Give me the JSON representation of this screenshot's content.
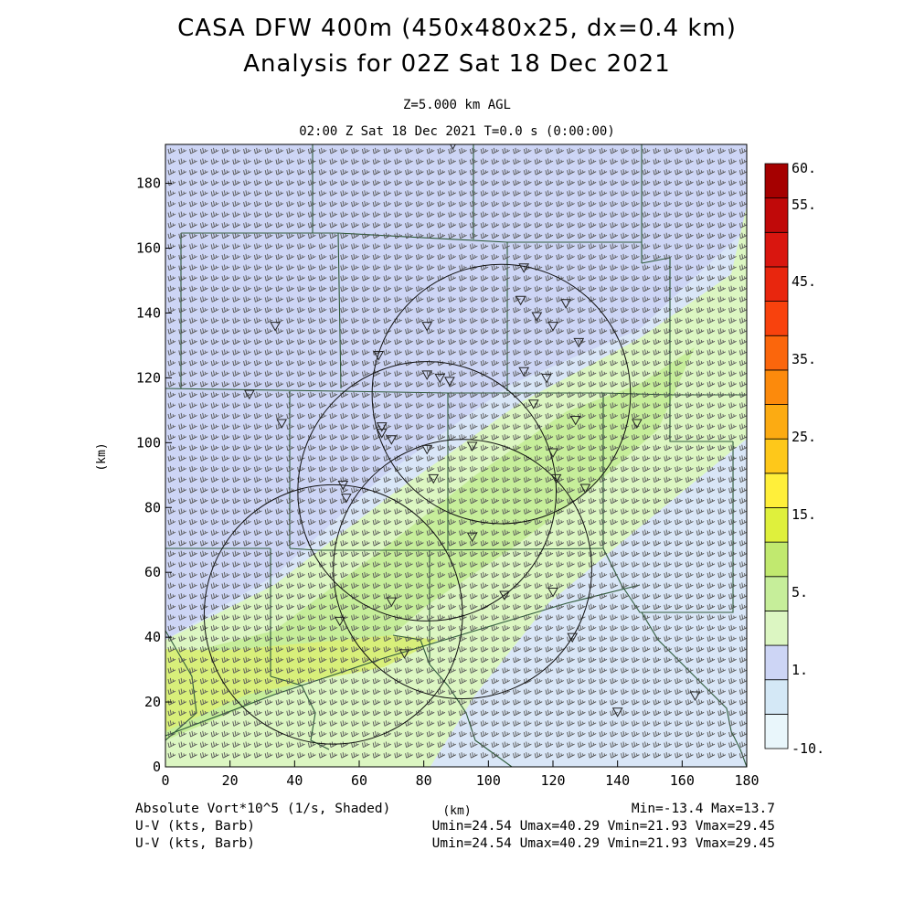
{
  "title": {
    "line1": "CASA DFW 400m (450x480x25, dx=0.4 km)",
    "line2": "Analysis for 02Z Sat 18 Dec 2021"
  },
  "subtitle": {
    "level": "Z=5.000 km AGL",
    "time": "02:00 Z Sat 18 Dec 2021   T=0.0 s (0:00:00)"
  },
  "axes": {
    "x_ticks": [
      "0",
      "20",
      "40",
      "60",
      "80",
      "100",
      "120",
      "140",
      "160",
      "180"
    ],
    "y_ticks": [
      "0",
      "20",
      "40",
      "60",
      "80",
      "100",
      "120",
      "140",
      "160",
      "180"
    ],
    "x_label": "(km)",
    "y_label": "(km)",
    "x_range": [
      0,
      180
    ],
    "y_range": [
      0,
      192
    ]
  },
  "colorbar": {
    "labels": [
      "60.",
      "55.",
      "45.",
      "35.",
      "25.",
      "15.",
      "5.",
      "1.",
      "-10."
    ],
    "colors": [
      "#e9f6fb",
      "#d4e8f6",
      "#cdd5f5",
      "#dcf6c2",
      "#c6ee9a",
      "#c1e96f",
      "#dff03c",
      "#ffef3a",
      "#fec81a",
      "#fcab12",
      "#fc8a0c",
      "#fb660c",
      "#f8420d",
      "#e8260e",
      "#d9160f",
      "#c00909",
      "#a50000"
    ]
  },
  "field": {
    "variable": "Absolute Vort*10^5 (1/s, Shaded)",
    "barbs_1": "U-V (kts, Barb)",
    "barbs_2": "U-V (kts, Barb)",
    "minmax": "Min=-13.4 Max=13.7",
    "uv_1": "Umin=24.54 Umax=40.29 Vmin=21.93 Vmax=29.45",
    "uv_2": "Umin=24.54 Umax=40.29 Vmin=21.93 Vmax=29.45"
  },
  "radars": [
    {
      "x_km": 104,
      "y_km": 115,
      "r_km": 40
    },
    {
      "x_km": 81,
      "y_km": 85,
      "r_km": 40
    },
    {
      "x_km": 92,
      "y_km": 61,
      "r_km": 40
    },
    {
      "x_km": 52,
      "y_km": 47,
      "r_km": 40
    }
  ],
  "stations_km": [
    [
      89,
      192
    ],
    [
      111,
      154
    ],
    [
      110,
      144
    ],
    [
      124,
      143
    ],
    [
      115,
      139
    ],
    [
      120,
      136
    ],
    [
      128,
      131
    ],
    [
      34,
      136
    ],
    [
      81,
      136
    ],
    [
      66,
      127
    ],
    [
      81,
      121
    ],
    [
      85,
      120
    ],
    [
      88,
      119
    ],
    [
      111,
      122
    ],
    [
      118,
      120
    ],
    [
      26,
      115
    ],
    [
      114,
      112
    ],
    [
      127,
      107
    ],
    [
      36,
      106
    ],
    [
      146,
      106
    ],
    [
      67,
      105
    ],
    [
      67,
      103
    ],
    [
      70,
      101
    ],
    [
      81,
      98
    ],
    [
      95,
      99
    ],
    [
      120,
      97
    ],
    [
      121,
      89
    ],
    [
      83,
      89
    ],
    [
      55,
      87
    ],
    [
      56,
      83
    ],
    [
      130,
      86
    ],
    [
      95,
      71
    ],
    [
      120,
      54
    ],
    [
      105,
      53
    ],
    [
      70,
      51
    ],
    [
      54,
      45
    ],
    [
      126,
      40
    ],
    [
      74,
      35
    ],
    [
      164,
      22
    ],
    [
      140,
      17
    ]
  ]
}
